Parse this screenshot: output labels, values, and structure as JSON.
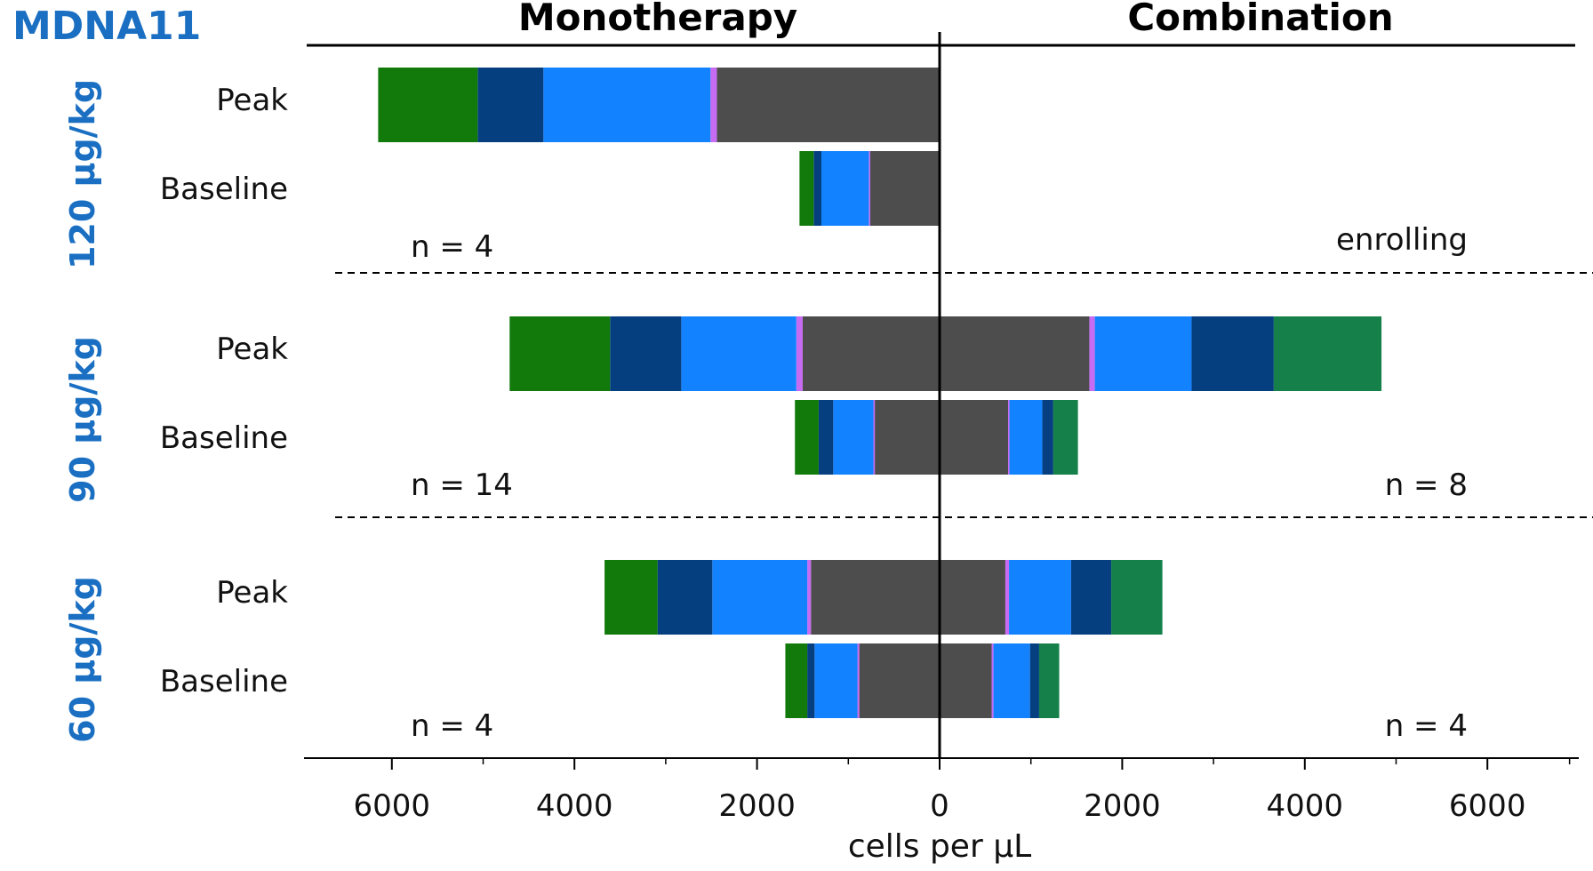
{
  "brand": "MDNA11",
  "chart_data": {
    "type": "bar",
    "orientation": "horizontal",
    "stacked": true,
    "left_title": "Monotherapy",
    "right_title": "Combination",
    "xlabel": "cells per µL",
    "xlim": [
      -6800,
      6800
    ],
    "x_ticks": [
      -6000,
      -4000,
      -2000,
      0,
      2000,
      4000,
      6000
    ],
    "x_tick_labels": [
      "6000",
      "4000",
      "2000",
      "0",
      "2000",
      "4000",
      "6000"
    ],
    "row_labels": [
      "Peak",
      "Baseline"
    ],
    "segment_colors": [
      "#4d4d4d",
      "#c76bf2",
      "#1382ff",
      "#063f80",
      "#117a0a",
      "#158049"
    ],
    "groups": [
      {
        "dose": "120 µg/kg",
        "mono_n": "n = 4",
        "combo_note": "enrolling",
        "rows": [
          {
            "label": "Peak",
            "mono": [
              2440,
              70,
              1830,
              720,
              1090
            ],
            "combo": []
          },
          {
            "label": "Baseline",
            "mono": [
              760,
              15,
              520,
              85,
              155
            ],
            "combo": []
          }
        ]
      },
      {
        "dose": "90 µg/kg",
        "mono_n": "n = 14",
        "combo_note": "n = 8",
        "rows": [
          {
            "label": "Peak",
            "mono": [
              1500,
              70,
              1260,
              780,
              1100
            ],
            "combo": [
              1640,
              60,
              1060,
              900,
              0,
              1180
            ]
          },
          {
            "label": "Baseline",
            "mono": [
              710,
              15,
              440,
              160,
              260
            ],
            "combo": [
              750,
              15,
              360,
              120,
              0,
              270
            ]
          }
        ]
      },
      {
        "dose": "60 µg/kg",
        "mono_n": "n = 4",
        "combo_note": "n = 4",
        "rows": [
          {
            "label": "Peak",
            "mono": [
              1410,
              40,
              1040,
              600,
              580
            ],
            "combo": [
              720,
              40,
              680,
              440,
              0,
              560
            ]
          },
          {
            "label": "Baseline",
            "mono": [
              880,
              20,
              470,
              80,
              240
            ],
            "combo": [
              570,
              20,
              400,
              100,
              0,
              220
            ]
          }
        ]
      }
    ]
  }
}
